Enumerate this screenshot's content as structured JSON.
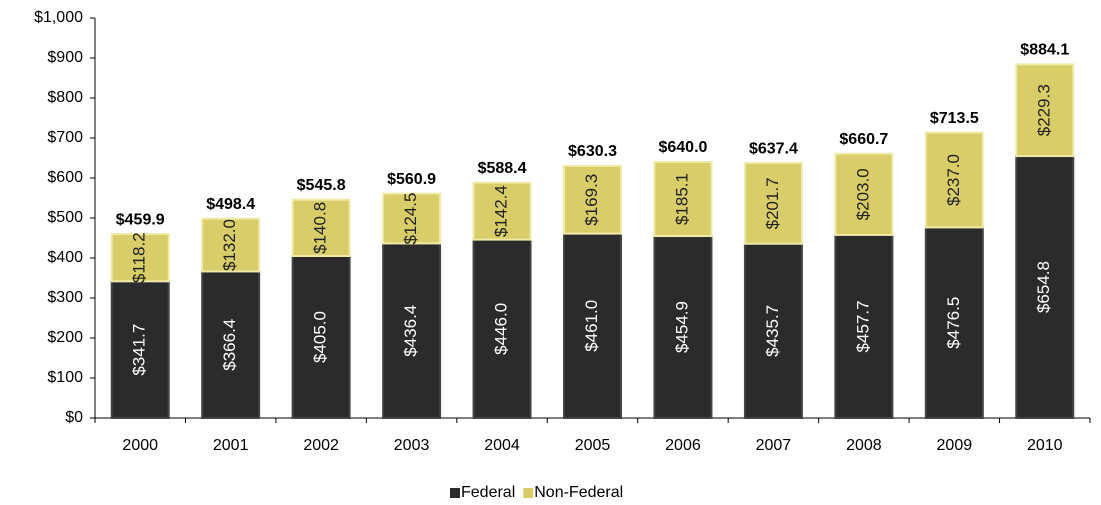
{
  "chart_data": {
    "type": "stacked_bar",
    "categories": [
      "2000",
      "2001",
      "2002",
      "2003",
      "2004",
      "2005",
      "2006",
      "2007",
      "2008",
      "2009",
      "2010"
    ],
    "series": [
      {
        "name": "Federal",
        "color": "#2b2b2b",
        "values": [
          341.7,
          366.4,
          405.0,
          436.4,
          446.0,
          461.0,
          454.9,
          435.7,
          457.7,
          476.5,
          654.8
        ],
        "value_labels": [
          "$341.7",
          "$366.4",
          "$405.0",
          "$436.4",
          "$446.0",
          "$461.0",
          "$454.9",
          "$435.7",
          "$457.7",
          "$476.5",
          "$654.8"
        ]
      },
      {
        "name": "Non-Federal",
        "color": "#d8cd68",
        "values": [
          118.2,
          132.0,
          140.8,
          124.5,
          142.4,
          169.3,
          185.1,
          201.7,
          203.0,
          237.0,
          229.3
        ],
        "value_labels": [
          "$118.2",
          "$132.0",
          "$140.8",
          "$124.5",
          "$142.4",
          "$169.3",
          "$185.1",
          "$201.7",
          "$203.0",
          "$237.0",
          "$229.3"
        ]
      }
    ],
    "totals": [
      459.9,
      498.4,
      545.8,
      560.9,
      588.4,
      630.3,
      640.0,
      637.4,
      660.7,
      713.5,
      884.1
    ],
    "total_labels": [
      "$459.9",
      "$498.4",
      "$545.8",
      "$560.9",
      "$588.4",
      "$630.3",
      "$640.0",
      "$637.4",
      "$660.7",
      "$713.5",
      "$884.1"
    ],
    "ylim": [
      0,
      1000
    ],
    "yticks": [
      {
        "value": 0,
        "label": "$0"
      },
      {
        "value": 100,
        "label": "$100"
      },
      {
        "value": 200,
        "label": "$200"
      },
      {
        "value": 300,
        "label": "$300"
      },
      {
        "value": 400,
        "label": "$400"
      },
      {
        "value": 500,
        "label": "$500"
      },
      {
        "value": 600,
        "label": "$600"
      },
      {
        "value": 700,
        "label": "$700"
      },
      {
        "value": 800,
        "label": "$800"
      },
      {
        "value": 900,
        "label": "$900"
      },
      {
        "value": 1000,
        "label": "$1,000"
      }
    ],
    "legend": "bottom"
  }
}
